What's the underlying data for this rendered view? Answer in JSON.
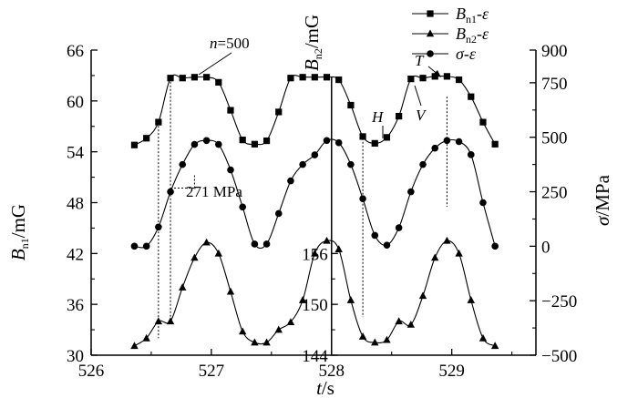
{
  "chart_data": {
    "type": "line",
    "x_label": "t/s",
    "x_ticks": [
      526,
      527,
      528,
      529
    ],
    "xlim": [
      526,
      529.7
    ],
    "y_left": {
      "label": "Bn1/mG",
      "ticks": [
        30,
        36,
        42,
        48,
        54,
        60,
        66
      ],
      "range": [
        30,
        66
      ]
    },
    "y_mid": {
      "label": "Bn2/mG",
      "ticks": [
        144,
        150,
        156
      ],
      "visible_range": [
        143.2,
        160
      ]
    },
    "y_right": {
      "label": "σ/MPa",
      "ticks": [
        -500,
        -250,
        0,
        250,
        500,
        750,
        900
      ],
      "range": [
        -500,
        900
      ]
    },
    "legend": {
      "position": "top-right",
      "entries": [
        "Bn1-ε",
        "Bn2-ε",
        "σ-ε"
      ]
    },
    "annotations": {
      "n_label": "n=500",
      "stress_label": "271 MPa",
      "H": "H",
      "T": "T",
      "V": "V"
    },
    "series": [
      {
        "name": "Bn1-ε",
        "marker": "square",
        "axis": "left",
        "x": [
          526.36,
          526.46,
          526.56,
          526.66,
          526.76,
          526.86,
          526.96,
          527.06,
          527.16,
          527.26,
          527.36,
          527.46,
          527.56,
          527.66,
          527.76,
          527.86,
          527.96,
          528.06,
          528.16,
          528.26,
          528.36,
          528.46,
          528.56,
          528.66,
          528.76,
          528.86,
          528.96,
          529.06,
          529.16,
          529.26,
          529.36
        ],
        "y": [
          54.8,
          55.6,
          57.5,
          62.7,
          62.7,
          62.8,
          62.8,
          62.2,
          58.9,
          55.4,
          54.9,
          55.3,
          58.7,
          62.7,
          62.8,
          62.8,
          62.8,
          62.5,
          59.5,
          55.8,
          55.0,
          55.7,
          58.2,
          62.6,
          62.7,
          62.9,
          62.9,
          62.5,
          60.5,
          57.5,
          54.9
        ]
      },
      {
        "name": "σ-ε",
        "marker": "circle",
        "axis": "right",
        "x": [
          526.36,
          526.46,
          526.56,
          526.66,
          526.76,
          526.86,
          526.96,
          527.06,
          527.16,
          527.26,
          527.36,
          527.46,
          527.56,
          527.66,
          527.76,
          527.86,
          527.96,
          528.06,
          528.16,
          528.26,
          528.36,
          528.46,
          528.56,
          528.66,
          528.76,
          528.86,
          528.96,
          529.06,
          529.16,
          529.26,
          529.36
        ],
        "y": [
          0,
          0,
          88,
          250,
          375,
          467,
          485,
          467,
          350,
          180,
          10,
          10,
          150,
          300,
          375,
          419,
          485,
          475,
          375,
          218,
          50,
          5,
          85,
          250,
          375,
          450,
          485,
          480,
          420,
          200,
          0
        ]
      },
      {
        "name": "Bn2-ε",
        "marker": "triangle",
        "axis": "left",
        "x": [
          526.36,
          526.46,
          526.56,
          526.66,
          526.76,
          526.86,
          526.96,
          527.06,
          527.16,
          527.26,
          527.36,
          527.46,
          527.56,
          527.66,
          527.76,
          527.86,
          527.96,
          528.06,
          528.16,
          528.26,
          528.36,
          528.46,
          528.56,
          528.66,
          528.76,
          528.86,
          528.96,
          529.06,
          529.16,
          529.26,
          529.36
        ],
        "y": [
          31.1,
          32.0,
          34.0,
          34.0,
          38.0,
          41.5,
          43.3,
          42.0,
          37.5,
          32.8,
          31.5,
          31.5,
          33.0,
          33.9,
          36.5,
          42.0,
          43.5,
          42.5,
          36.5,
          32.2,
          31.5,
          31.8,
          34.0,
          33.6,
          37.0,
          41.5,
          43.5,
          42.0,
          36.5,
          32.0,
          31.1
        ]
      }
    ]
  }
}
